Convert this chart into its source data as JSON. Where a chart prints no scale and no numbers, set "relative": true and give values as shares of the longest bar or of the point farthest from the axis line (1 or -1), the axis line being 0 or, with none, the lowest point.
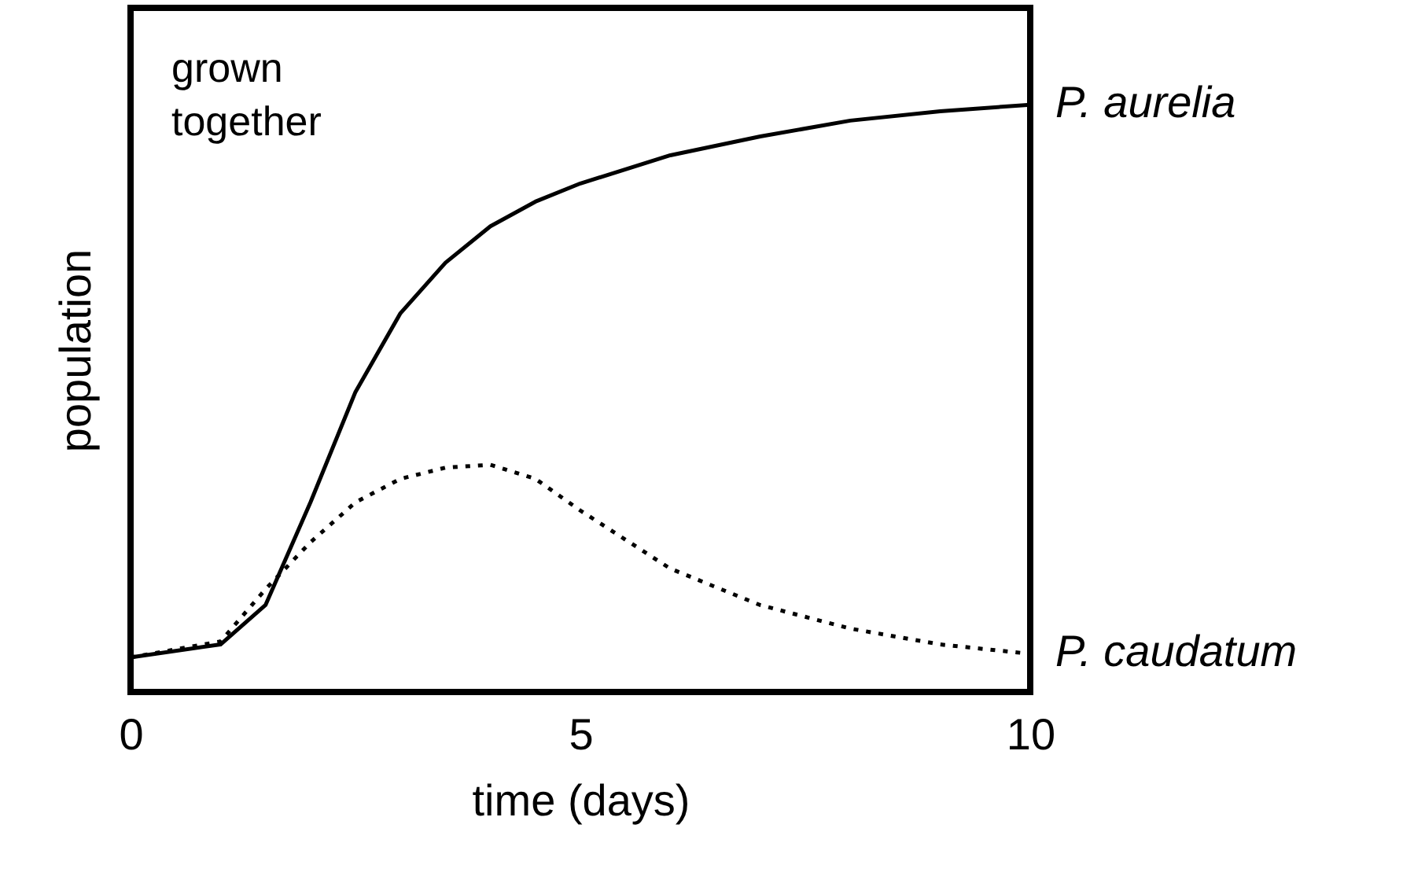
{
  "chart_data": {
    "type": "line",
    "xlabel": "time (days)",
    "ylabel": "population",
    "relative": true,
    "xlim": [
      0,
      10
    ],
    "xticks": [
      0,
      5,
      10
    ],
    "grid": false,
    "marker": "none",
    "annotations": [
      "grown\ntogether"
    ],
    "x": [
      0,
      1,
      1.5,
      2,
      2.5,
      3,
      3.5,
      4,
      4.5,
      5,
      6,
      7,
      8,
      9,
      10
    ],
    "series": [
      {
        "name": "P. aurelia",
        "color": "#000000",
        "line_style": "solid",
        "values": [
          0.059,
          0.081,
          0.148,
          0.323,
          0.511,
          0.645,
          0.731,
          0.793,
          0.835,
          0.866,
          0.914,
          0.946,
          0.973,
          0.989,
          1.0
        ]
      },
      {
        "name": "P. caudatum",
        "color": "#000000",
        "line_style": "dotted",
        "values": [
          0.059,
          0.086,
          0.175,
          0.255,
          0.323,
          0.363,
          0.382,
          0.387,
          0.363,
          0.309,
          0.21,
          0.148,
          0.108,
          0.081,
          0.065
        ]
      }
    ]
  }
}
